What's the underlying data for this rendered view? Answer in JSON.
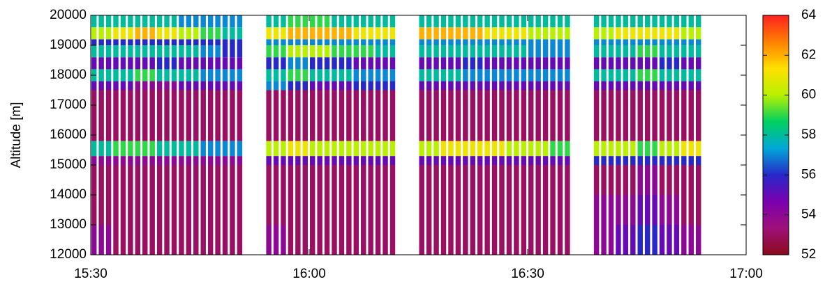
{
  "chart_data": {
    "type": "heatmap",
    "ylabel": "Altitude [m]",
    "xlim": [
      "15:30",
      "17:00"
    ],
    "xticks": [
      "15:30",
      "16:00",
      "16:30",
      "17:00"
    ],
    "ylim": [
      12000,
      20000
    ],
    "yticks": [
      12000,
      13000,
      14000,
      15000,
      16000,
      17000,
      18000,
      19000,
      20000
    ],
    "zlim": [
      52,
      64
    ],
    "zticks": [
      52,
      54,
      56,
      58,
      60,
      62,
      64
    ],
    "colormap": [
      "#8b0a1a",
      "#a0107a",
      "#7a00b0",
      "#2828c8",
      "#00a8d8",
      "#00d060",
      "#b8f000",
      "#ffe000",
      "#ff8000",
      "#ff2020"
    ],
    "xbins": [
      "15:30",
      "15:33",
      "15:36",
      "15:39",
      "15:42",
      "15:45",
      "15:48",
      "15:51",
      "15:54",
      "15:57",
      "16:00",
      "16:03",
      "16:06",
      "16:09",
      "16:12",
      "16:15",
      "16:18",
      "16:21",
      "16:24",
      "16:27",
      "16:30",
      "16:33",
      "16:36",
      "16:39",
      "16:42",
      "16:45",
      "16:48",
      "16:51",
      "16:54"
    ],
    "ybins": [
      12000,
      13000,
      14000,
      15000,
      15300,
      15800,
      17500,
      17800,
      18200,
      18600,
      19000,
      19200,
      19600,
      20000
    ],
    "z": [
      [
        54,
        53,
        53,
        53,
        53,
        53,
        53,
        null,
        54,
        53,
        53,
        53,
        53,
        53,
        null,
        53,
        53,
        53,
        53,
        53,
        53,
        53,
        null,
        54,
        55,
        56,
        55,
        54
      ],
      [
        53,
        53,
        53,
        53,
        53,
        53,
        53,
        null,
        53,
        53,
        53,
        53,
        53,
        53,
        null,
        53,
        53,
        53,
        53,
        53,
        53,
        53,
        null,
        54,
        54,
        55,
        54,
        53
      ],
      [
        53,
        53,
        53,
        53,
        53,
        53,
        53,
        null,
        53,
        53,
        53,
        53,
        53,
        53,
        null,
        53,
        53,
        53,
        53,
        53,
        53,
        53,
        null,
        53,
        53,
        54,
        53,
        53
      ],
      [
        54,
        54,
        54,
        54,
        54,
        54,
        54,
        null,
        55,
        55,
        55,
        55,
        55,
        55,
        null,
        55,
        55,
        55,
        55,
        55,
        55,
        55,
        null,
        56,
        56,
        56,
        56,
        56
      ],
      [
        58,
        59,
        59,
        58,
        58,
        57,
        57,
        null,
        60,
        61,
        60,
        60,
        60,
        60,
        null,
        60,
        61,
        61,
        61,
        60,
        60,
        59,
        null,
        60,
        60,
        59,
        60,
        61
      ],
      [
        53,
        53,
        53,
        53,
        53,
        53,
        53,
        null,
        53,
        53,
        53,
        53,
        53,
        53,
        null,
        53,
        53,
        53,
        53,
        53,
        53,
        53,
        null,
        53,
        53,
        53,
        53,
        53
      ],
      [
        55,
        55,
        54,
        54,
        55,
        55,
        55,
        null,
        57,
        56,
        55,
        55,
        56,
        56,
        null,
        55,
        55,
        55,
        55,
        55,
        55,
        55,
        null,
        55,
        55,
        55,
        55,
        55
      ],
      [
        58,
        58,
        59,
        58,
        58,
        57,
        57,
        null,
        58,
        59,
        58,
        58,
        57,
        57,
        null,
        58,
        58,
        57,
        57,
        57,
        57,
        57,
        null,
        58,
        58,
        59,
        58,
        58
      ],
      [
        55,
        55,
        55,
        56,
        55,
        55,
        55,
        null,
        56,
        57,
        56,
        56,
        55,
        55,
        null,
        55,
        55,
        56,
        55,
        55,
        55,
        55,
        null,
        55,
        55,
        55,
        56,
        55
      ],
      [
        58,
        58,
        58,
        58,
        58,
        57,
        56,
        null,
        59,
        60,
        60,
        59,
        59,
        58,
        null,
        58,
        58,
        58,
        58,
        58,
        57,
        57,
        null,
        58,
        58,
        59,
        58,
        58
      ],
      [
        56,
        56,
        56,
        56,
        56,
        56,
        56,
        null,
        57,
        57,
        57,
        57,
        57,
        57,
        null,
        57,
        57,
        57,
        57,
        57,
        57,
        57,
        null,
        57,
        57,
        57,
        57,
        57
      ],
      [
        60,
        61,
        62,
        61,
        60,
        59,
        58,
        null,
        61,
        62,
        62,
        62,
        61,
        61,
        null,
        62,
        62,
        62,
        61,
        61,
        60,
        60,
        null,
        60,
        61,
        61,
        61,
        60
      ],
      [
        58,
        58,
        58,
        58,
        57,
        57,
        57,
        null,
        58,
        59,
        59,
        58,
        58,
        58,
        null,
        58,
        58,
        58,
        58,
        58,
        58,
        58,
        null,
        58,
        58,
        58,
        58,
        58
      ]
    ]
  }
}
